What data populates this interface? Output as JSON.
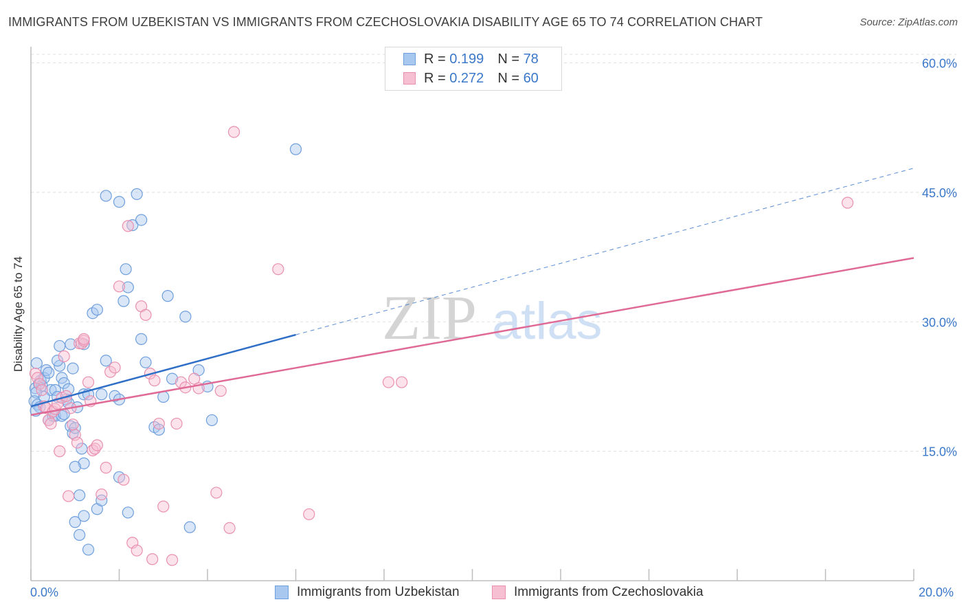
{
  "header": {
    "title": "IMMIGRANTS FROM UZBEKISTAN VS IMMIGRANTS FROM CZECHOSLOVAKIA DISABILITY AGE 65 TO 74 CORRELATION CHART",
    "source": "Source: ZipAtlas.com"
  },
  "watermark": {
    "zip": "ZIP",
    "atlas": "atlas"
  },
  "legend": {
    "rows": [
      {
        "r_label": "R =",
        "r_value": "0.199",
        "n_label": "N =",
        "n_value": "78"
      },
      {
        "r_label": "R =",
        "r_value": "0.272",
        "n_label": "N =",
        "n_value": "60"
      }
    ]
  },
  "colors": {
    "blue_fill": "#a9c8f0",
    "blue_stroke": "#6f9fdc",
    "blue_line": "#2f6fc7",
    "pink_fill": "#f6bfd2",
    "pink_stroke": "#e990b0",
    "pink_line": "#e06a96",
    "tick_text": "#3a78c9",
    "grid": "#dedede"
  },
  "chart_data": {
    "type": "scatter",
    "title": "IMMIGRANTS FROM UZBEKISTAN VS IMMIGRANTS FROM CZECHOSLOVAKIA DISABILITY AGE 65 TO 74 CORRELATION CHART",
    "xlabel": "",
    "ylabel": "Disability Age 65 to 74",
    "xlim": [
      0,
      20
    ],
    "ylim": [
      0,
      61
    ],
    "x_tick_labels": [
      "0.0%",
      "20.0%"
    ],
    "y_ticks": [
      15,
      30,
      45,
      60
    ],
    "y_tick_labels": [
      "15.0%",
      "30.0%",
      "45.0%",
      "60.0%"
    ],
    "series": [
      {
        "name": "Immigrants from Uzbekistan",
        "color": "#6f9fdc",
        "r": 0.199,
        "n": 78,
        "trend": {
          "x0": 0,
          "y0": 20.2,
          "x1": 6,
          "y1": 28.5,
          "dashed_to_x": 20,
          "dashed_to_y": 47.8
        },
        "points": [
          [
            0.13,
            25.2
          ],
          [
            0.18,
            22.8
          ],
          [
            0.22,
            23.2
          ],
          [
            0.25,
            22.6
          ],
          [
            0.1,
            22.3
          ],
          [
            0.12,
            21.8
          ],
          [
            0.08,
            20.8
          ],
          [
            0.15,
            20.4
          ],
          [
            0.2,
            20.1
          ],
          [
            0.11,
            19.7
          ],
          [
            0.3,
            23.5
          ],
          [
            0.35,
            24.4
          ],
          [
            0.4,
            24.1
          ],
          [
            0.45,
            22.1
          ],
          [
            0.55,
            22.1
          ],
          [
            0.6,
            21.3
          ],
          [
            0.65,
            24.9
          ],
          [
            0.7,
            23.5
          ],
          [
            0.75,
            22.9
          ],
          [
            0.8,
            21.0
          ],
          [
            0.3,
            21.3
          ],
          [
            0.4,
            18.6
          ],
          [
            0.5,
            19.1
          ],
          [
            0.55,
            19.1
          ],
          [
            0.7,
            19.1
          ],
          [
            0.75,
            19.3
          ],
          [
            0.85,
            20.6
          ],
          [
            0.9,
            17.9
          ],
          [
            0.95,
            17.1
          ],
          [
            1.0,
            17.7
          ],
          [
            0.85,
            22.2
          ],
          [
            0.6,
            25.5
          ],
          [
            0.65,
            27.2
          ],
          [
            0.9,
            27.4
          ],
          [
            0.95,
            24.6
          ],
          [
            1.05,
            20.1
          ],
          [
            1.2,
            21.6
          ],
          [
            1.3,
            21.6
          ],
          [
            1.15,
            15.3
          ],
          [
            1.2,
            13.6
          ],
          [
            1.0,
            13.2
          ],
          [
            1.1,
            9.9
          ],
          [
            1.0,
            6.8
          ],
          [
            1.1,
            5.3
          ],
          [
            1.2,
            7.5
          ],
          [
            1.5,
            8.3
          ],
          [
            1.6,
            21.6
          ],
          [
            1.7,
            25.5
          ],
          [
            1.6,
            9.3
          ],
          [
            1.9,
            21.4
          ],
          [
            2.0,
            21.0
          ],
          [
            2.1,
            32.4
          ],
          [
            2.15,
            36.1
          ],
          [
            2.2,
            34.0
          ],
          [
            2.3,
            41.2
          ],
          [
            2.5,
            41.8
          ],
          [
            2.0,
            12.0
          ],
          [
            2.2,
            7.9
          ],
          [
            2.5,
            28.0
          ],
          [
            2.6,
            25.3
          ],
          [
            2.8,
            17.8
          ],
          [
            2.9,
            17.5
          ],
          [
            3.0,
            21.3
          ],
          [
            3.1,
            33.0
          ],
          [
            3.2,
            23.4
          ],
          [
            3.5,
            30.6
          ],
          [
            3.6,
            6.2
          ],
          [
            3.8,
            24.4
          ],
          [
            4.0,
            22.5
          ],
          [
            4.1,
            18.6
          ],
          [
            1.7,
            44.6
          ],
          [
            2.0,
            43.9
          ],
          [
            2.4,
            44.8
          ],
          [
            6.0,
            50.0
          ],
          [
            1.4,
            31.0
          ],
          [
            1.5,
            31.4
          ],
          [
            1.2,
            27.4
          ],
          [
            1.3,
            3.6
          ]
        ]
      },
      {
        "name": "Immigrants from Czechoslovakia",
        "color": "#e990b0",
        "r": 0.272,
        "n": 60,
        "trend": {
          "x0": 0,
          "y0": 19.2,
          "x1": 20,
          "y1": 37.4
        },
        "points": [
          [
            0.1,
            24.0
          ],
          [
            0.15,
            23.5
          ],
          [
            0.2,
            22.8
          ],
          [
            0.25,
            22.1
          ],
          [
            0.3,
            20.2
          ],
          [
            0.35,
            20.0
          ],
          [
            0.4,
            18.6
          ],
          [
            0.45,
            18.2
          ],
          [
            0.5,
            19.6
          ],
          [
            0.55,
            19.9
          ],
          [
            0.6,
            20.5
          ],
          [
            0.7,
            21.2
          ],
          [
            0.8,
            21.4
          ],
          [
            0.9,
            20.0
          ],
          [
            0.95,
            18.1
          ],
          [
            1.0,
            16.9
          ],
          [
            1.05,
            16.0
          ],
          [
            1.1,
            27.5
          ],
          [
            1.15,
            27.5
          ],
          [
            1.2,
            27.8
          ],
          [
            1.3,
            23.0
          ],
          [
            1.35,
            20.8
          ],
          [
            1.4,
            15.1
          ],
          [
            1.45,
            15.3
          ],
          [
            1.5,
            15.7
          ],
          [
            1.6,
            10.0
          ],
          [
            1.7,
            13.1
          ],
          [
            1.8,
            24.2
          ],
          [
            1.9,
            24.7
          ],
          [
            2.0,
            34.1
          ],
          [
            2.1,
            11.7
          ],
          [
            2.2,
            41.1
          ],
          [
            2.3,
            4.4
          ],
          [
            2.4,
            3.5
          ],
          [
            2.5,
            31.8
          ],
          [
            2.6,
            30.8
          ],
          [
            2.7,
            24.0
          ],
          [
            2.8,
            23.2
          ],
          [
            2.9,
            18.2
          ],
          [
            3.0,
            8.6
          ],
          [
            3.2,
            2.4
          ],
          [
            3.3,
            18.2
          ],
          [
            3.4,
            23.0
          ],
          [
            3.5,
            22.4
          ],
          [
            3.7,
            23.4
          ],
          [
            3.8,
            22.3
          ],
          [
            4.2,
            10.2
          ],
          [
            4.3,
            22.0
          ],
          [
            4.5,
            6.1
          ],
          [
            4.6,
            52.0
          ],
          [
            5.6,
            36.1
          ],
          [
            6.3,
            7.7
          ],
          [
            8.1,
            23.0
          ],
          [
            8.4,
            23.0
          ],
          [
            18.5,
            43.8
          ],
          [
            0.75,
            26.0
          ],
          [
            1.2,
            28.0
          ],
          [
            0.65,
            15.0
          ],
          [
            0.85,
            9.8
          ],
          [
            2.75,
            2.5
          ]
        ]
      }
    ]
  },
  "bottom_legend": [
    {
      "label": "Immigrants from Uzbekistan"
    },
    {
      "label": "Immigrants from Czechoslovakia"
    }
  ]
}
